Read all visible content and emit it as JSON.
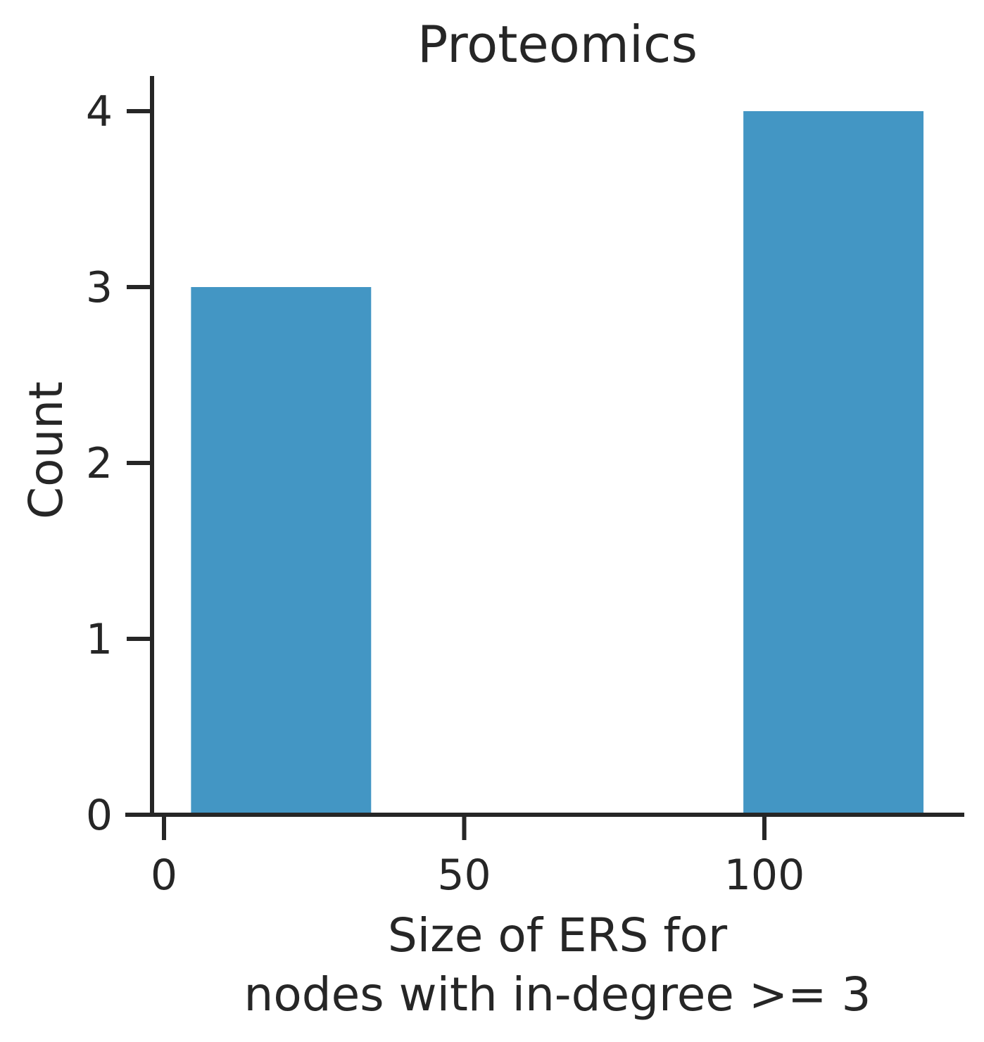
{
  "chart_data": {
    "type": "bar",
    "title": "Proteomics",
    "xlabel": [
      "Size of ERS for",
      "nodes with in-degree >= 3"
    ],
    "ylabel": "Count",
    "xlim": [
      -2,
      133
    ],
    "ylim": [
      0,
      4.2
    ],
    "xticks": [
      0,
      50,
      100
    ],
    "xtick_labels": [
      "0",
      "50",
      "100"
    ],
    "yticks": [
      0,
      1,
      2,
      3,
      4
    ],
    "ytick_labels": [
      "0",
      "1",
      "2",
      "3",
      "4"
    ],
    "bins": [
      {
        "x_start": 4.5,
        "x_end": 34.5,
        "count": 3
      },
      {
        "x_start": 34.5,
        "x_end": 66.0,
        "count": 0
      },
      {
        "x_start": 66.0,
        "x_end": 96.5,
        "count": 0
      },
      {
        "x_start": 96.5,
        "x_end": 126.5,
        "count": 4
      }
    ],
    "bar_color": "#4396c4",
    "axis_color": "#262626",
    "grid": false,
    "legend": "none"
  }
}
